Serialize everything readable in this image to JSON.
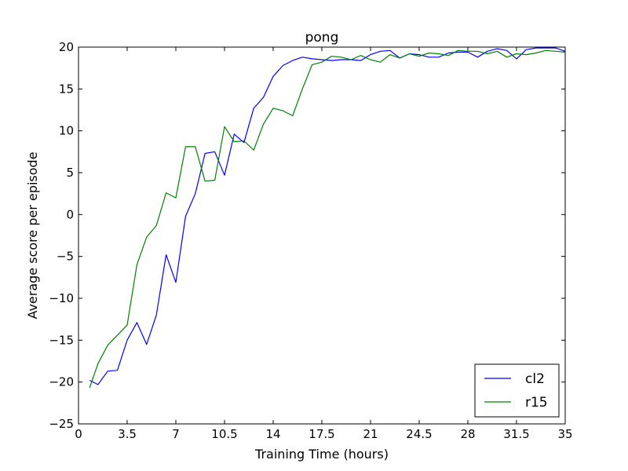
{
  "chart_data": {
    "type": "line",
    "title": "pong",
    "xlabel": "Training Time (hours)",
    "ylabel": "Average score per episode",
    "xlim": [
      0,
      35
    ],
    "ylim": [
      -25,
      20
    ],
    "xticks": [
      0,
      3.5,
      7,
      10.5,
      14,
      17.5,
      21,
      24.5,
      28,
      31.5,
      35
    ],
    "xtick_labels": [
      "0",
      "3.5",
      "7",
      "10.5",
      "14",
      "17.5",
      "21",
      "24.5",
      "28",
      "31.5",
      "35"
    ],
    "yticks": [
      -25,
      -20,
      -15,
      -10,
      -5,
      0,
      5,
      10,
      15,
      20
    ],
    "ytick_labels": [
      "−25",
      "−20",
      "−15",
      "−10",
      "−5",
      "0",
      "5",
      "10",
      "15",
      "20"
    ],
    "grid": false,
    "legend_position": "lower-right",
    "series": [
      {
        "name": "cl2",
        "color": "#0000ff",
        "x": [
          0.8,
          1.4,
          2.1,
          2.8,
          3.5,
          4.2,
          4.9,
          5.6,
          6.3,
          7.0,
          7.7,
          8.4,
          9.1,
          9.8,
          10.5,
          11.2,
          11.9,
          12.6,
          13.3,
          14.0,
          14.7,
          15.4,
          16.1,
          16.8,
          17.5,
          18.2,
          18.9,
          19.6,
          20.3,
          21.0,
          21.7,
          22.4,
          23.1,
          23.8,
          24.5,
          25.2,
          25.9,
          26.6,
          27.3,
          28.0,
          28.7,
          29.4,
          30.1,
          30.8,
          31.5,
          32.2,
          32.9,
          33.6,
          34.3,
          35.0
        ],
        "y": [
          -19.8,
          -20.3,
          -18.7,
          -18.6,
          -15.0,
          -12.9,
          -15.5,
          -12.0,
          -4.8,
          -8.1,
          -0.2,
          2.5,
          7.3,
          7.5,
          4.7,
          9.6,
          8.6,
          12.7,
          14.0,
          16.5,
          17.8,
          18.4,
          18.8,
          18.6,
          18.5,
          18.4,
          18.5,
          18.5,
          18.4,
          19.1,
          19.5,
          19.6,
          18.7,
          19.2,
          19.1,
          18.8,
          18.8,
          19.3,
          19.4,
          19.4,
          18.8,
          19.5,
          19.8,
          19.6,
          18.6,
          19.7,
          19.9,
          19.9,
          19.9,
          19.5
        ]
      },
      {
        "name": "r15",
        "color": "#008000",
        "x": [
          0.8,
          1.4,
          2.1,
          2.8,
          3.5,
          4.2,
          4.9,
          5.6,
          6.3,
          7.0,
          7.7,
          8.4,
          9.1,
          9.8,
          10.5,
          11.2,
          11.9,
          12.6,
          13.3,
          14.0,
          14.7,
          15.4,
          16.1,
          16.8,
          17.5,
          18.2,
          18.9,
          19.6,
          20.3,
          21.0,
          21.7,
          22.4,
          23.1,
          23.8,
          24.5,
          25.2,
          25.9,
          26.6,
          27.3,
          28.0,
          28.7,
          29.4,
          30.1,
          30.8,
          31.5,
          32.2,
          32.9,
          33.6,
          34.3,
          35.0
        ],
        "y": [
          -20.7,
          -17.8,
          -15.6,
          -14.4,
          -13.2,
          -6.0,
          -2.7,
          -1.3,
          2.6,
          2.0,
          8.1,
          8.1,
          4.0,
          4.1,
          10.5,
          8.7,
          8.8,
          7.7,
          10.8,
          12.7,
          12.4,
          11.8,
          15.0,
          17.9,
          18.2,
          18.9,
          18.8,
          18.5,
          19.0,
          18.5,
          18.2,
          19.1,
          18.7,
          19.2,
          18.9,
          19.3,
          19.2,
          19.0,
          19.6,
          19.5,
          19.5,
          19.2,
          19.5,
          18.8,
          19.2,
          19.1,
          19.3,
          19.6,
          19.5,
          19.4
        ]
      }
    ]
  }
}
